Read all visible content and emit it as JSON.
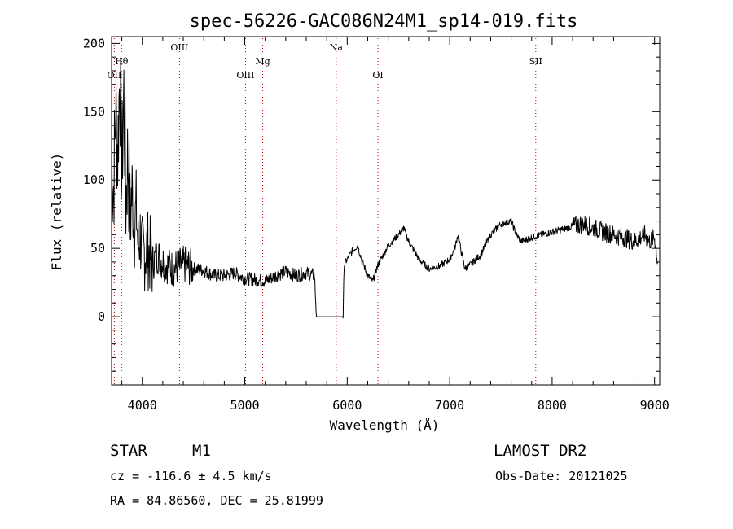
{
  "chart_data": {
    "type": "line",
    "title": "spec-56226-GAC086N24M1_sp14-019.fits",
    "xlabel": "Wavelength (Å)",
    "ylabel": "Flux (relative)",
    "xlim": [
      3700,
      9050
    ],
    "ylim": [
      -50,
      205
    ],
    "x_ticks": [
      4000,
      5000,
      6000,
      7000,
      8000,
      9000
    ],
    "y_ticks": [
      0,
      50,
      100,
      150,
      200
    ],
    "grid": false,
    "series_color": "#000000",
    "line_marker_color": "#cc0000",
    "spectrum": [
      {
        "x": 3700,
        "y": 110
      },
      {
        "x": 3720,
        "y": 95
      },
      {
        "x": 3740,
        "y": 150
      },
      {
        "x": 3760,
        "y": 120
      },
      {
        "x": 3780,
        "y": 180
      },
      {
        "x": 3800,
        "y": 105
      },
      {
        "x": 3820,
        "y": 165
      },
      {
        "x": 3840,
        "y": 85
      },
      {
        "x": 3860,
        "y": 120
      },
      {
        "x": 3880,
        "y": 70
      },
      {
        "x": 3900,
        "y": 95
      },
      {
        "x": 3920,
        "y": 60
      },
      {
        "x": 3940,
        "y": 80
      },
      {
        "x": 3960,
        "y": 50
      },
      {
        "x": 3980,
        "y": 60
      },
      {
        "x": 4000,
        "y": 45
      },
      {
        "x": 4050,
        "y": 50
      },
      {
        "x": 4100,
        "y": 40
      },
      {
        "x": 4150,
        "y": 45
      },
      {
        "x": 4200,
        "y": 40
      },
      {
        "x": 4300,
        "y": 35
      },
      {
        "x": 4400,
        "y": 38
      },
      {
        "x": 4500,
        "y": 35
      },
      {
        "x": 4600,
        "y": 34
      },
      {
        "x": 4700,
        "y": 30
      },
      {
        "x": 4800,
        "y": 30
      },
      {
        "x": 4900,
        "y": 32
      },
      {
        "x": 5000,
        "y": 28
      },
      {
        "x": 5100,
        "y": 27
      },
      {
        "x": 5200,
        "y": 26
      },
      {
        "x": 5300,
        "y": 30
      },
      {
        "x": 5400,
        "y": 33
      },
      {
        "x": 5500,
        "y": 30
      },
      {
        "x": 5600,
        "y": 32
      },
      {
        "x": 5680,
        "y": 30
      },
      {
        "x": 5700,
        "y": 0
      },
      {
        "x": 5800,
        "y": 0
      },
      {
        "x": 5900,
        "y": 0
      },
      {
        "x": 5960,
        "y": 0
      },
      {
        "x": 5970,
        "y": 38
      },
      {
        "x": 6000,
        "y": 42
      },
      {
        "x": 6050,
        "y": 48
      },
      {
        "x": 6100,
        "y": 52
      },
      {
        "x": 6150,
        "y": 40
      },
      {
        "x": 6200,
        "y": 30
      },
      {
        "x": 6250,
        "y": 26
      },
      {
        "x": 6300,
        "y": 38
      },
      {
        "x": 6350,
        "y": 45
      },
      {
        "x": 6400,
        "y": 52
      },
      {
        "x": 6500,
        "y": 60
      },
      {
        "x": 6550,
        "y": 65
      },
      {
        "x": 6600,
        "y": 55
      },
      {
        "x": 6700,
        "y": 42
      },
      {
        "x": 6800,
        "y": 35
      },
      {
        "x": 6900,
        "y": 37
      },
      {
        "x": 7000,
        "y": 42
      },
      {
        "x": 7050,
        "y": 50
      },
      {
        "x": 7080,
        "y": 60
      },
      {
        "x": 7120,
        "y": 45
      },
      {
        "x": 7150,
        "y": 35
      },
      {
        "x": 7200,
        "y": 38
      },
      {
        "x": 7300,
        "y": 45
      },
      {
        "x": 7400,
        "y": 60
      },
      {
        "x": 7500,
        "y": 68
      },
      {
        "x": 7600,
        "y": 70
      },
      {
        "x": 7650,
        "y": 60
      },
      {
        "x": 7700,
        "y": 55
      },
      {
        "x": 7800,
        "y": 58
      },
      {
        "x": 7900,
        "y": 60
      },
      {
        "x": 8000,
        "y": 62
      },
      {
        "x": 8100,
        "y": 64
      },
      {
        "x": 8200,
        "y": 66
      },
      {
        "x": 8300,
        "y": 68
      },
      {
        "x": 8400,
        "y": 65
      },
      {
        "x": 8500,
        "y": 62
      },
      {
        "x": 8600,
        "y": 60
      },
      {
        "x": 8700,
        "y": 58
      },
      {
        "x": 8800,
        "y": 55
      },
      {
        "x": 8900,
        "y": 60
      },
      {
        "x": 8950,
        "y": 55
      },
      {
        "x": 9000,
        "y": 58
      },
      {
        "x": 9030,
        "y": 40
      }
    ],
    "spectral_lines": [
      {
        "label": "OII",
        "wavelength": 3727,
        "label_row": 3
      },
      {
        "label": "Hθ",
        "wavelength": 3798,
        "label_row": 2
      },
      {
        "label": "OIII",
        "wavelength": 4363,
        "label_row": 1
      },
      {
        "label": "OIII",
        "wavelength": 5007,
        "label_row": 3
      },
      {
        "label": "Mg",
        "wavelength": 5175,
        "label_row": 2
      },
      {
        "label": "Na",
        "wavelength": 5893,
        "label_row": 1
      },
      {
        "label": "OI",
        "wavelength": 6300,
        "label_row": 3
      },
      {
        "label": "SII",
        "wavelength": 7840,
        "label_row": 2
      }
    ]
  },
  "info": {
    "class_label": "STAR",
    "subclass_label": "M1",
    "redshift_text": "cz = -116.6 ± 4.5 km/s",
    "coords_text": "RA =  84.86560, DEC =  25.81999",
    "survey_label": "LAMOST DR2",
    "obs_date_text": "Obs-Date: 20121025"
  }
}
